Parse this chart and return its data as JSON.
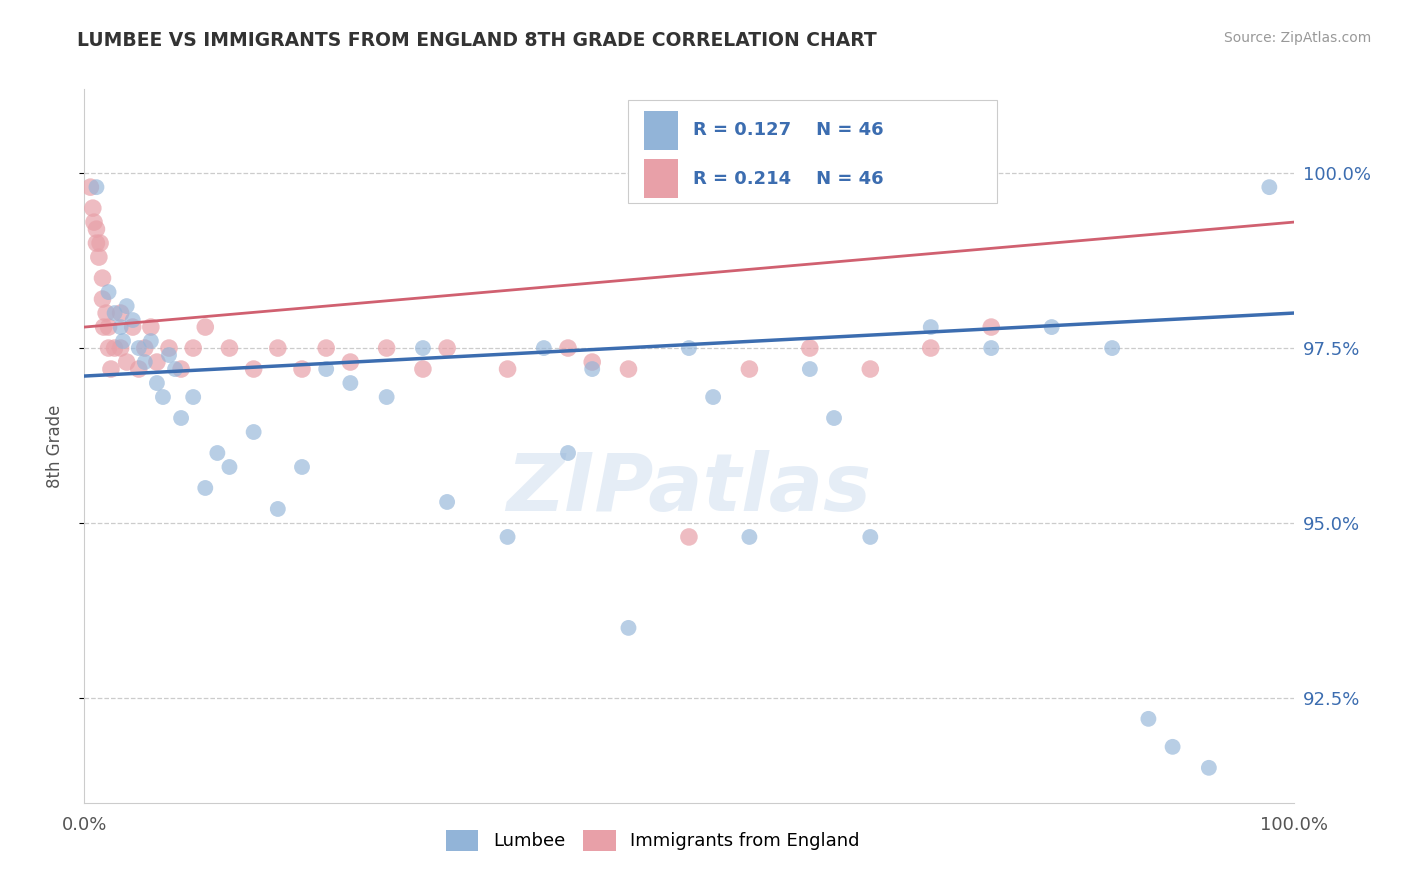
{
  "title": "LUMBEE VS IMMIGRANTS FROM ENGLAND 8TH GRADE CORRELATION CHART",
  "source": "Source: ZipAtlas.com",
  "ylabel": "8th Grade",
  "legend_labels": [
    "Lumbee",
    "Immigrants from England"
  ],
  "r_lumbee": 0.127,
  "r_england": 0.214,
  "n": 46,
  "blue_color": "#92b4d8",
  "pink_color": "#e8a0a8",
  "trend_blue": "#3c6db0",
  "trend_pink": "#d06070",
  "lumbee_dots": [
    [
      1.0,
      99.8
    ],
    [
      2.0,
      98.3
    ],
    [
      2.5,
      98.0
    ],
    [
      3.0,
      97.8
    ],
    [
      3.2,
      97.6
    ],
    [
      3.5,
      98.1
    ],
    [
      4.0,
      97.9
    ],
    [
      4.5,
      97.5
    ],
    [
      5.0,
      97.3
    ],
    [
      5.5,
      97.6
    ],
    [
      6.0,
      97.0
    ],
    [
      6.5,
      96.8
    ],
    [
      7.0,
      97.4
    ],
    [
      7.5,
      97.2
    ],
    [
      8.0,
      96.5
    ],
    [
      9.0,
      96.8
    ],
    [
      10.0,
      95.5
    ],
    [
      11.0,
      96.0
    ],
    [
      12.0,
      95.8
    ],
    [
      14.0,
      96.3
    ],
    [
      16.0,
      95.2
    ],
    [
      18.0,
      95.8
    ],
    [
      20.0,
      97.2
    ],
    [
      22.0,
      97.0
    ],
    [
      25.0,
      96.8
    ],
    [
      28.0,
      97.5
    ],
    [
      30.0,
      95.3
    ],
    [
      35.0,
      94.8
    ],
    [
      38.0,
      97.5
    ],
    [
      40.0,
      96.0
    ],
    [
      42.0,
      97.2
    ],
    [
      45.0,
      93.5
    ],
    [
      50.0,
      97.5
    ],
    [
      52.0,
      96.8
    ],
    [
      55.0,
      94.8
    ],
    [
      60.0,
      97.2
    ],
    [
      62.0,
      96.5
    ],
    [
      65.0,
      94.8
    ],
    [
      70.0,
      97.8
    ],
    [
      75.0,
      97.5
    ],
    [
      80.0,
      97.8
    ],
    [
      85.0,
      97.5
    ],
    [
      88.0,
      92.2
    ],
    [
      90.0,
      91.8
    ],
    [
      93.0,
      91.5
    ],
    [
      98.0,
      99.8
    ]
  ],
  "england_dots": [
    [
      0.5,
      99.8
    ],
    [
      0.7,
      99.5
    ],
    [
      0.8,
      99.3
    ],
    [
      1.0,
      99.2
    ],
    [
      1.0,
      99.0
    ],
    [
      1.2,
      98.8
    ],
    [
      1.3,
      99.0
    ],
    [
      1.5,
      98.5
    ],
    [
      1.5,
      98.2
    ],
    [
      1.6,
      97.8
    ],
    [
      1.8,
      98.0
    ],
    [
      2.0,
      97.5
    ],
    [
      2.0,
      97.8
    ],
    [
      2.2,
      97.2
    ],
    [
      2.5,
      97.5
    ],
    [
      3.0,
      98.0
    ],
    [
      3.0,
      97.5
    ],
    [
      3.5,
      97.3
    ],
    [
      4.0,
      97.8
    ],
    [
      4.5,
      97.2
    ],
    [
      5.0,
      97.5
    ],
    [
      5.5,
      97.8
    ],
    [
      6.0,
      97.3
    ],
    [
      7.0,
      97.5
    ],
    [
      8.0,
      97.2
    ],
    [
      9.0,
      97.5
    ],
    [
      10.0,
      97.8
    ],
    [
      12.0,
      97.5
    ],
    [
      14.0,
      97.2
    ],
    [
      16.0,
      97.5
    ],
    [
      18.0,
      97.2
    ],
    [
      20.0,
      97.5
    ],
    [
      22.0,
      97.3
    ],
    [
      25.0,
      97.5
    ],
    [
      28.0,
      97.2
    ],
    [
      30.0,
      97.5
    ],
    [
      35.0,
      97.2
    ],
    [
      40.0,
      97.5
    ],
    [
      42.0,
      97.3
    ],
    [
      45.0,
      97.2
    ],
    [
      50.0,
      94.8
    ],
    [
      55.0,
      97.2
    ],
    [
      60.0,
      97.5
    ],
    [
      65.0,
      97.2
    ],
    [
      70.0,
      97.5
    ],
    [
      75.0,
      97.8
    ]
  ],
  "dot_size_lumbee": 130,
  "dot_size_england": 160,
  "xlim": [
    0,
    100
  ],
  "ylim": [
    91.0,
    101.2
  ],
  "yticks_right": [
    92.5,
    95.0,
    97.5,
    100.0
  ],
  "xticks": [
    0,
    100
  ],
  "watermark_text": "ZIPatlas",
  "background_color": "#ffffff",
  "grid_color": "#cccccc",
  "axis_color": "#cccccc"
}
